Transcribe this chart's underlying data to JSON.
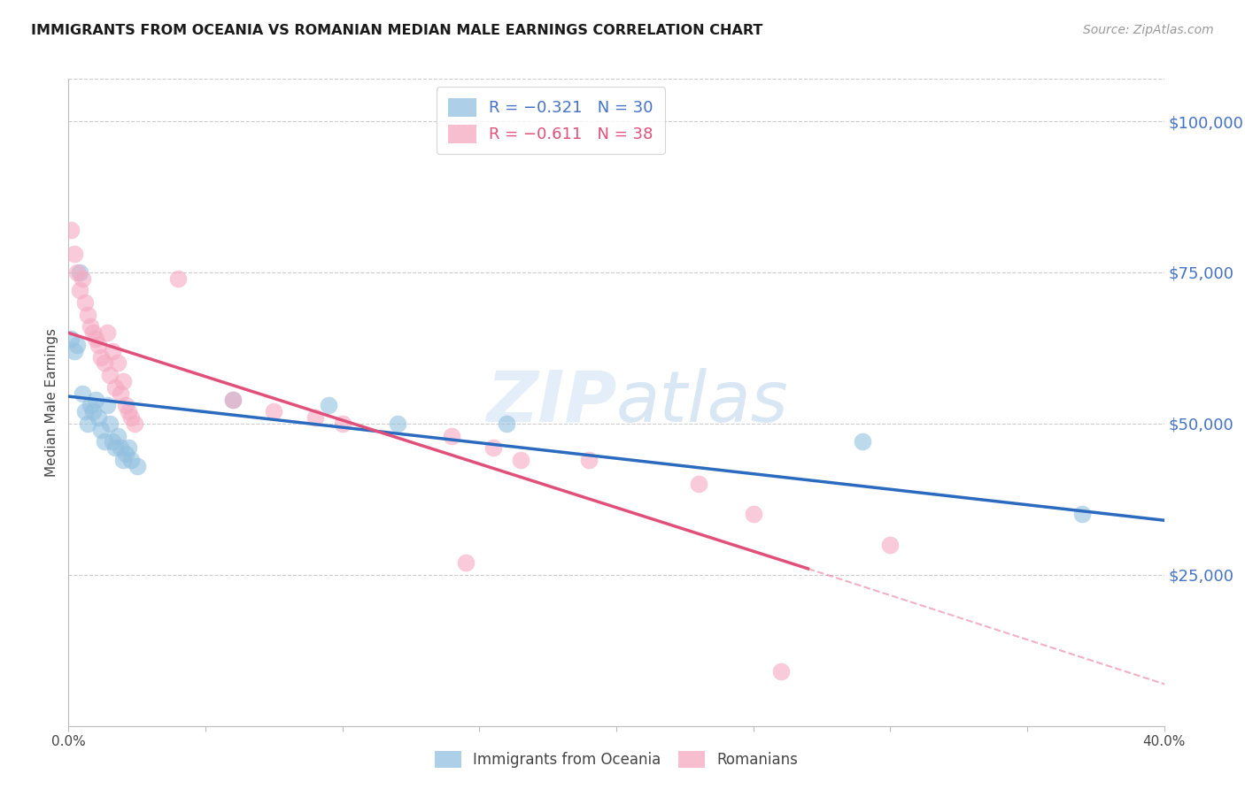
{
  "title": "IMMIGRANTS FROM OCEANIA VS ROMANIAN MEDIAN MALE EARNINGS CORRELATION CHART",
  "source": "Source: ZipAtlas.com",
  "ylabel": "Median Male Earnings",
  "right_yticklabels": [
    "",
    "$25,000",
    "$50,000",
    "$75,000",
    "$100,000"
  ],
  "right_ytick_vals": [
    0,
    25000,
    50000,
    75000,
    100000
  ],
  "watermark_text": "ZIPatlas",
  "legend_r_labels": [
    "R = −0.321   N = 30",
    "R = −0.611   N = 38"
  ],
  "legend_series_labels": [
    "Immigrants from Oceania",
    "Romanians"
  ],
  "blue_color": "#92c0e0",
  "pink_color": "#f5a8c0",
  "blue_line_color": "#2a6abf",
  "pink_line_color": "#e0507a",
  "blue_scatter": [
    [
      0.001,
      64000
    ],
    [
      0.002,
      62000
    ],
    [
      0.003,
      63000
    ],
    [
      0.004,
      75000
    ],
    [
      0.005,
      55000
    ],
    [
      0.006,
      52000
    ],
    [
      0.007,
      50000
    ],
    [
      0.008,
      53000
    ],
    [
      0.009,
      52000
    ],
    [
      0.01,
      54000
    ],
    [
      0.011,
      51000
    ],
    [
      0.012,
      49000
    ],
    [
      0.013,
      47000
    ],
    [
      0.014,
      53000
    ],
    [
      0.015,
      50000
    ],
    [
      0.016,
      47000
    ],
    [
      0.017,
      46000
    ],
    [
      0.018,
      48000
    ],
    [
      0.019,
      46000
    ],
    [
      0.02,
      44000
    ],
    [
      0.021,
      45000
    ],
    [
      0.022,
      46000
    ],
    [
      0.023,
      44000
    ],
    [
      0.025,
      43000
    ],
    [
      0.06,
      54000
    ],
    [
      0.095,
      53000
    ],
    [
      0.12,
      50000
    ],
    [
      0.16,
      50000
    ],
    [
      0.29,
      47000
    ],
    [
      0.37,
      35000
    ]
  ],
  "pink_scatter": [
    [
      0.001,
      82000
    ],
    [
      0.002,
      78000
    ],
    [
      0.003,
      75000
    ],
    [
      0.004,
      72000
    ],
    [
      0.005,
      74000
    ],
    [
      0.006,
      70000
    ],
    [
      0.007,
      68000
    ],
    [
      0.008,
      66000
    ],
    [
      0.009,
      65000
    ],
    [
      0.01,
      64000
    ],
    [
      0.011,
      63000
    ],
    [
      0.012,
      61000
    ],
    [
      0.013,
      60000
    ],
    [
      0.014,
      65000
    ],
    [
      0.015,
      58000
    ],
    [
      0.016,
      62000
    ],
    [
      0.017,
      56000
    ],
    [
      0.018,
      60000
    ],
    [
      0.019,
      55000
    ],
    [
      0.02,
      57000
    ],
    [
      0.021,
      53000
    ],
    [
      0.022,
      52000
    ],
    [
      0.023,
      51000
    ],
    [
      0.024,
      50000
    ],
    [
      0.04,
      74000
    ],
    [
      0.06,
      54000
    ],
    [
      0.075,
      52000
    ],
    [
      0.09,
      51000
    ],
    [
      0.1,
      50000
    ],
    [
      0.14,
      48000
    ],
    [
      0.155,
      46000
    ],
    [
      0.165,
      44000
    ],
    [
      0.19,
      44000
    ],
    [
      0.23,
      40000
    ],
    [
      0.25,
      35000
    ],
    [
      0.3,
      30000
    ],
    [
      0.145,
      27000
    ],
    [
      0.26,
      9000
    ]
  ],
  "xlim": [
    0,
    0.4
  ],
  "ylim": [
    0,
    107000
  ],
  "blue_line": {
    "x": [
      0.0,
      0.4
    ],
    "y": [
      54500,
      34000
    ]
  },
  "pink_line_solid": {
    "x": [
      0.0,
      0.27
    ],
    "y": [
      65000,
      26000
    ]
  },
  "pink_line_dash": {
    "x": [
      0.27,
      0.42
    ],
    "y": [
      26000,
      4000
    ]
  },
  "xtick_vals": [
    0,
    0.05,
    0.1,
    0.15,
    0.2,
    0.25,
    0.3,
    0.35,
    0.4
  ],
  "xtick_labels": [
    "0.0%",
    "",
    "",
    "",
    "",
    "",
    "",
    "",
    "40.0%"
  ]
}
